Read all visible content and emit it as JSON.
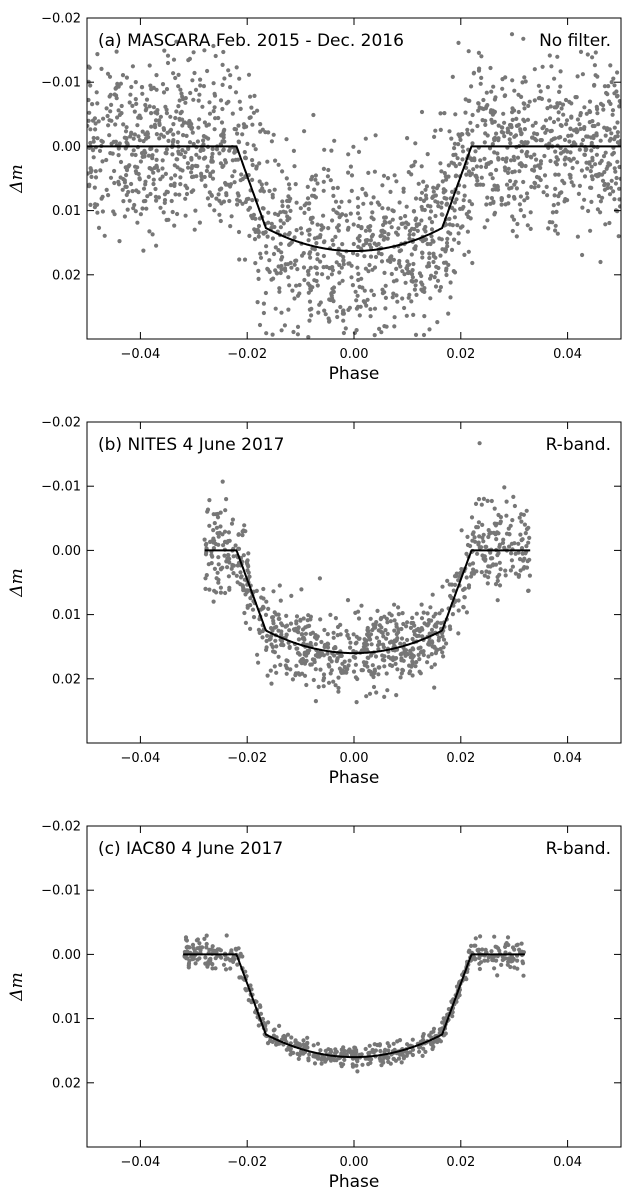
{
  "figure": {
    "panels_count": 3
  },
  "chart_data": [
    {
      "type": "scatter",
      "title": "(a) MASCARA Feb. 2015 - Dec. 2016",
      "filter_label": "No filter.",
      "xlabel": "Phase",
      "ylabel": "Δm",
      "xlim": [
        -0.05,
        0.05
      ],
      "ylim": [
        -0.02,
        0.03
      ],
      "y_inverted": true,
      "xticks": [
        -0.04,
        -0.02,
        0.0,
        0.02,
        0.04
      ],
      "xtick_labels": [
        "−0.04",
        "−0.02",
        "0.00",
        "0.02",
        "0.04"
      ],
      "yticks": [
        -0.02,
        -0.01,
        0.0,
        0.01,
        0.02
      ],
      "ytick_labels": [
        "−0.02",
        "−0.01",
        "0.00",
        "0.01",
        "0.02"
      ],
      "data_range_x": [
        -0.05,
        0.05
      ],
      "data_noise": {
        "out_of_transit": 0.0065,
        "in_transit": 0.0075
      },
      "approx_points": 1900,
      "point_color": "#777777",
      "model": {
        "name": "transit model",
        "color": "#000000",
        "depth": 0.0163,
        "half_duration": 0.022,
        "ingress_duration": 0.0055
      }
    },
    {
      "type": "scatter",
      "title": "(b) NITES 4 June 2017",
      "filter_label": "R-band.",
      "xlabel": "Phase",
      "ylabel": "Δm",
      "xlim": [
        -0.05,
        0.05
      ],
      "ylim": [
        -0.02,
        0.03
      ],
      "y_inverted": true,
      "xticks": [
        -0.04,
        -0.02,
        0.0,
        0.02,
        0.04
      ],
      "xtick_labels": [
        "−0.04",
        "−0.02",
        "0.00",
        "0.02",
        "0.04"
      ],
      "yticks": [
        -0.02,
        -0.01,
        0.0,
        0.01,
        0.02
      ],
      "ytick_labels": [
        "−0.02",
        "−0.01",
        "0.00",
        "0.01",
        "0.02"
      ],
      "data_range_x": [
        -0.028,
        0.033
      ],
      "data_noise": {
        "out_of_transit": 0.0035,
        "in_transit": 0.003
      },
      "approx_points": 900,
      "point_color": "#777777",
      "model": {
        "name": "transit model",
        "color": "#000000",
        "depth": 0.016,
        "half_duration": 0.022,
        "ingress_duration": 0.0055,
        "x_range": [
          -0.028,
          0.033
        ]
      }
    },
    {
      "type": "scatter",
      "title": "(c) IAC80 4 June 2017",
      "filter_label": "R-band.",
      "xlabel": "Phase",
      "ylabel": "Δm",
      "xlim": [
        -0.05,
        0.05
      ],
      "ylim": [
        -0.02,
        0.03
      ],
      "y_inverted": true,
      "xticks": [
        -0.04,
        -0.02,
        0.0,
        0.02,
        0.04
      ],
      "xtick_labels": [
        "−0.04",
        "−0.02",
        "0.00",
        "0.02",
        "0.04"
      ],
      "yticks": [
        -0.02,
        -0.01,
        0.0,
        0.01,
        0.02
      ],
      "ytick_labels": [
        "−0.02",
        "−0.01",
        "0.00",
        "0.01",
        "0.02"
      ],
      "data_range_x": [
        -0.032,
        0.032
      ],
      "data_noise": {
        "out_of_transit": 0.0012,
        "in_transit": 0.0009
      },
      "approx_points": 600,
      "point_color": "#777777",
      "model": {
        "name": "transit model",
        "color": "#000000",
        "depth": 0.016,
        "half_duration": 0.022,
        "ingress_duration": 0.0055,
        "x_range": [
          -0.032,
          0.032
        ]
      }
    }
  ]
}
